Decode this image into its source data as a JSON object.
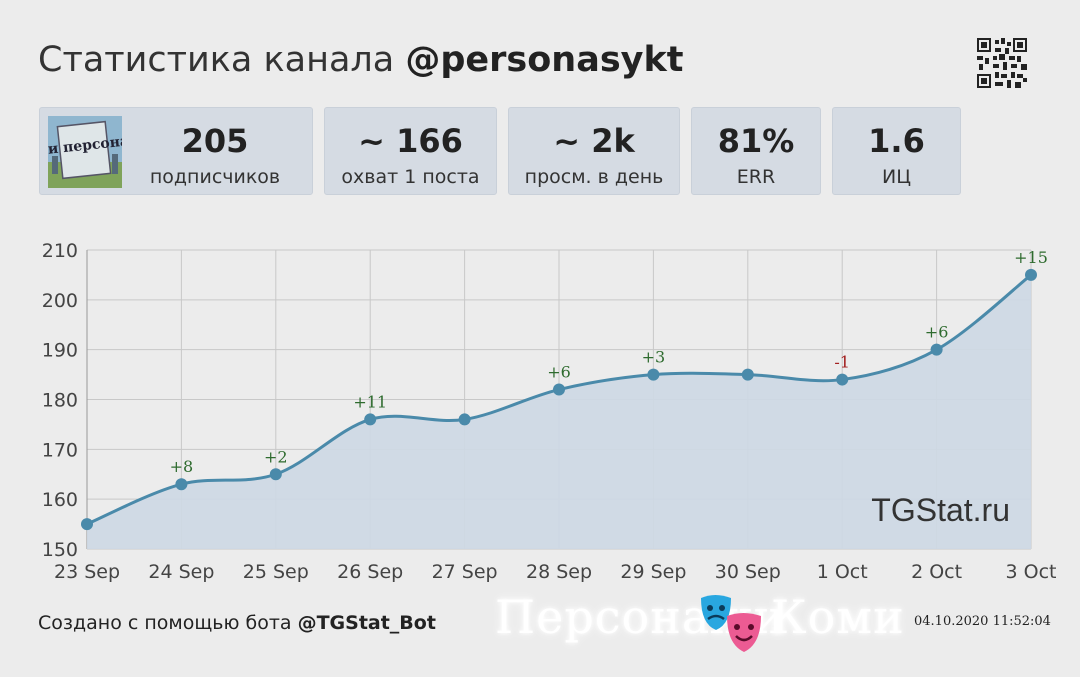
{
  "header": {
    "title_prefix": "Статистика канала ",
    "channel": "@personasykt"
  },
  "avatar": {
    "label": "Коми персонажи"
  },
  "stats": [
    {
      "value": "205",
      "label": "подписчиков"
    },
    {
      "value": "~ 166",
      "label": "охват 1 поста"
    },
    {
      "value": "~ 2k",
      "label": "просм. в день"
    },
    {
      "value": "81%",
      "label": "ERR"
    },
    {
      "value": "1.6",
      "label": "ИЦ"
    }
  ],
  "chart_data": {
    "type": "line",
    "categories": [
      "23 Sep",
      "24 Sep",
      "25 Sep",
      "26 Sep",
      "27 Sep",
      "28 Sep",
      "29 Sep",
      "30 Sep",
      "1 Oct",
      "2 Oct",
      "3 Oct"
    ],
    "values": [
      155,
      163,
      165,
      176,
      176,
      182,
      185,
      185,
      184,
      190,
      205
    ],
    "annotations": [
      "",
      "+8",
      "+2",
      "+11",
      "",
      "+6",
      "+3",
      "",
      "-1",
      "+6",
      "+15"
    ],
    "ylim": [
      150,
      210
    ],
    "yticks": [
      150,
      160,
      170,
      180,
      190,
      200,
      210
    ],
    "watermark": "TGStat.ru",
    "colors": {
      "line": "#4a8aaa",
      "fill": "#cdd8e4",
      "positive": "#2e6b2e",
      "negative": "#a32020"
    },
    "grid": true
  },
  "footer": {
    "prefix": "Создано с помощью бота ",
    "bot": "@TGStat_Bot",
    "timestamp": "04.10.2020 11:52:04"
  },
  "brand": {
    "left": "Персонажи",
    "right": "Коми",
    "icon": "theater-masks-icon"
  }
}
